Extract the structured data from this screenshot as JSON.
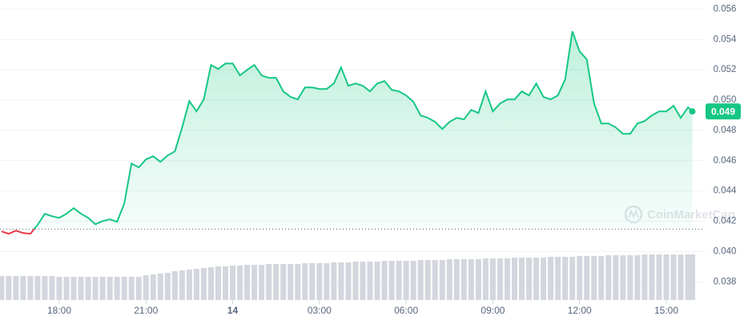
{
  "chart_data": {
    "type": "line",
    "color": "#16c784",
    "below_color": "#ea3943",
    "reference": 0.04148,
    "watermark": "CoinMarketCap",
    "x": [
      16,
      16.25,
      16.5,
      16.75,
      17,
      17.25,
      17.5,
      17.75,
      18,
      18.25,
      18.5,
      18.75,
      19,
      19.25,
      19.5,
      19.75,
      20,
      20.25,
      20.5,
      20.75,
      21,
      21.25,
      21.5,
      21.75,
      22,
      22.25,
      22.5,
      22.75,
      23,
      23.25,
      23.5,
      23.75,
      24,
      24.25,
      24.5,
      24.75,
      25,
      25.25,
      25.5,
      25.75,
      26,
      26.25,
      26.5,
      26.75,
      27,
      27.25,
      27.5,
      27.75,
      28,
      28.25,
      28.5,
      28.75,
      29,
      29.25,
      29.5,
      29.75,
      30,
      30.25,
      30.5,
      30.75,
      31,
      31.25,
      31.5,
      31.75,
      32,
      32.25,
      32.5,
      32.75,
      33,
      33.25,
      33.5,
      33.75,
      34,
      34.25,
      34.5,
      34.75,
      35,
      35.25,
      35.5,
      35.75,
      36,
      36.25,
      36.5,
      36.75,
      37,
      37.25,
      37.5,
      37.75,
      38,
      38.25,
      38.5,
      38.75,
      39,
      39.25,
      39.5,
      39.75,
      39.9
    ],
    "values": [
      0.04133,
      0.04117,
      0.04138,
      0.04122,
      0.04117,
      0.04175,
      0.04249,
      0.04233,
      0.04222,
      0.04249,
      0.04286,
      0.04249,
      0.04222,
      0.0418,
      0.04201,
      0.04212,
      0.04196,
      0.04317,
      0.04581,
      0.04555,
      0.04608,
      0.04629,
      0.04592,
      0.04634,
      0.04661,
      0.04819,
      0.04993,
      0.04925,
      0.05004,
      0.05231,
      0.05205,
      0.05241,
      0.05241,
      0.05162,
      0.05199,
      0.05231,
      0.05162,
      0.05146,
      0.05146,
      0.05057,
      0.0502,
      0.05004,
      0.05083,
      0.05083,
      0.05073,
      0.05073,
      0.05109,
      0.05215,
      0.05094,
      0.05109,
      0.05094,
      0.05057,
      0.05109,
      0.05125,
      0.05067,
      0.05057,
      0.0503,
      0.04988,
      0.04898,
      0.04882,
      0.04856,
      0.04809,
      0.04856,
      0.04882,
      0.04872,
      0.04935,
      0.04914,
      0.05057,
      0.04925,
      0.04977,
      0.05004,
      0.05004,
      0.05057,
      0.0503,
      0.05109,
      0.0502,
      0.05004,
      0.0503,
      0.05136,
      0.05453,
      0.05321,
      0.05268,
      0.04977,
      0.04845,
      0.04845,
      0.04819,
      0.04777,
      0.04777,
      0.04845,
      0.04861,
      0.04898,
      0.04925,
      0.04925,
      0.04962,
      0.04882,
      0.04951,
      0.04925
    ],
    "current_label": "0.049",
    "volume": [
      30,
      30,
      30,
      30,
      30,
      30,
      30,
      30,
      29,
      29,
      29,
      29,
      29,
      29,
      29,
      29,
      29,
      29,
      29,
      29,
      31,
      32,
      33,
      34,
      36,
      37,
      38,
      39,
      40,
      41,
      42,
      42,
      43,
      43,
      44,
      44,
      44,
      45,
      45,
      45,
      45,
      45,
      46,
      46,
      46,
      46,
      47,
      47,
      47,
      48,
      48,
      48,
      48,
      49,
      49,
      49,
      49,
      49,
      50,
      50,
      50,
      50,
      51,
      51,
      51,
      51,
      51,
      52,
      52,
      52,
      52,
      53,
      53,
      53,
      53,
      53,
      54,
      54,
      54,
      54,
      55,
      55,
      55,
      55,
      56,
      56,
      56,
      56,
      56,
      57,
      57,
      57,
      57,
      57,
      57,
      57,
      57
    ],
    "volume_color": "#d3d6dd",
    "volume_ylim": [
      0,
      60
    ],
    "xlim": [
      15.95,
      40.33
    ],
    "xticks": [
      {
        "value": 18,
        "label": "18:00"
      },
      {
        "value": 21,
        "label": "21:00"
      },
      {
        "value": 24,
        "label": "14"
      },
      {
        "value": 27,
        "label": "03:00"
      },
      {
        "value": 30,
        "label": "06:00"
      },
      {
        "value": 33,
        "label": "09:00"
      },
      {
        "value": 36,
        "label": "12:00"
      },
      {
        "value": 39,
        "label": "15:00"
      }
    ],
    "ylim": [
      0.0368,
      0.0566
    ],
    "yticks": [
      0.038,
      {
        "value": 0.04,
        "label": "0.040"
      },
      0.042,
      0.044,
      0.046,
      0.048,
      {
        "value": 0.05,
        "label": "0.050"
      },
      0.052,
      0.054,
      0.056
    ],
    "grid": true
  }
}
